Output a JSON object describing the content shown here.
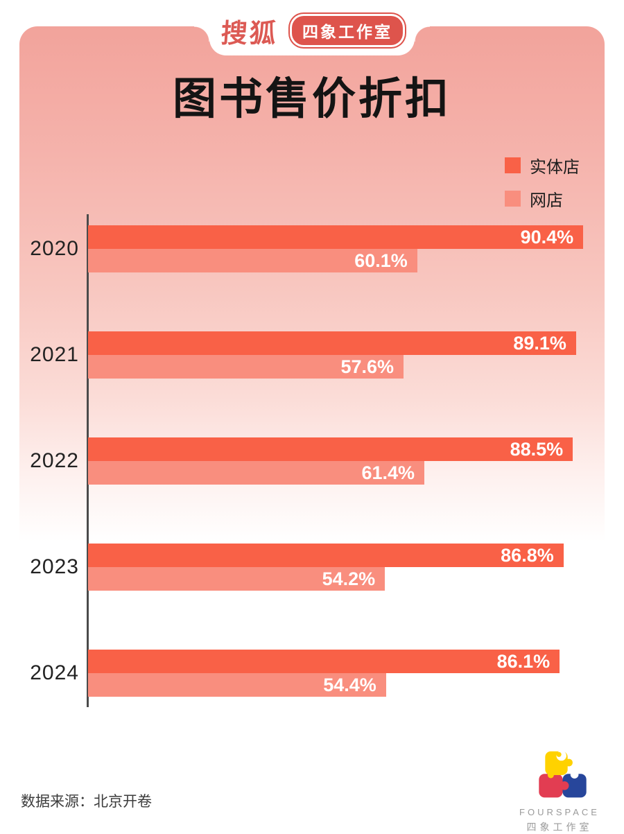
{
  "header": {
    "sohu_logo": "搜狐",
    "studio_badge": "四象工作室"
  },
  "title": "图书售价折扣",
  "chart_data": {
    "type": "bar",
    "orientation": "horizontal",
    "title": "图书售价折扣",
    "categories": [
      "2020",
      "2021",
      "2022",
      "2023",
      "2024"
    ],
    "series": [
      {
        "name": "实体店",
        "color": "#f96147",
        "values": [
          90.4,
          89.1,
          88.5,
          86.8,
          86.1
        ]
      },
      {
        "name": "网店",
        "color": "#f98e7e",
        "values": [
          60.1,
          57.6,
          61.4,
          54.2,
          54.4
        ]
      }
    ],
    "value_suffix": "%",
    "xlim": [
      0,
      98
    ],
    "grid": false,
    "legend_position": "top-right"
  },
  "footer": {
    "source": "数据来源：北京开卷",
    "logo_name": "FOURSPACE",
    "logo_subname": "四象工作室"
  },
  "colors": {
    "panel_top": "#f2a39b",
    "bar_primary": "#f96147",
    "bar_secondary": "#f98e7e",
    "badge_red": "#de544c",
    "axis": "#4b4b4b",
    "logo_yellow": "#ffd200",
    "logo_red": "#e23d52",
    "logo_blue": "#27469b"
  }
}
